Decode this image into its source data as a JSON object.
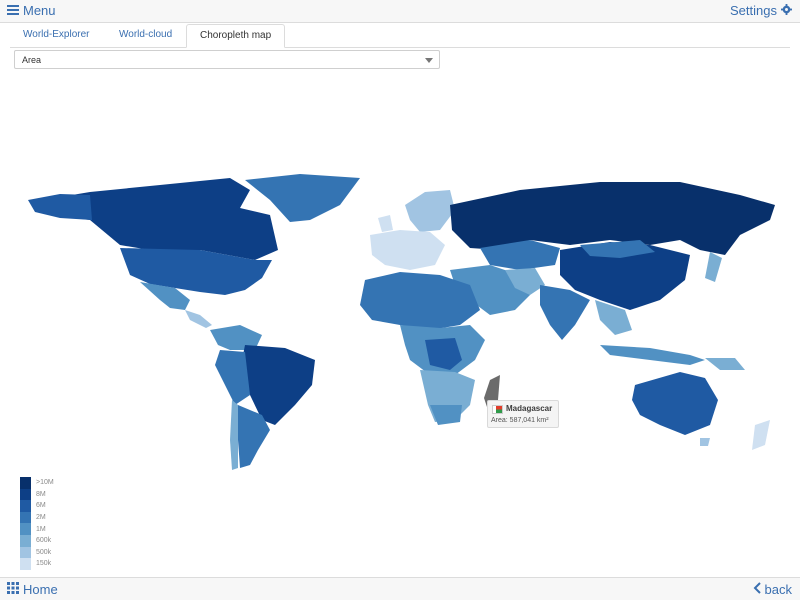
{
  "topbar": {
    "menu_label": "Menu",
    "settings_label": "Settings"
  },
  "tabs": [
    {
      "label": "World-Explorer",
      "active": false
    },
    {
      "label": "World-cloud",
      "active": false
    },
    {
      "label": "Choropleth map",
      "active": true
    }
  ],
  "select": {
    "value": "Area"
  },
  "tooltip": {
    "country": "Madagascar",
    "area_text": "Area: 587,041 km²"
  },
  "legend": [
    {
      "label": ">10M",
      "color": "#08306b"
    },
    {
      "label": "8M",
      "color": "#0d3f86"
    },
    {
      "label": "6M",
      "color": "#1f5aa3"
    },
    {
      "label": "2M",
      "color": "#3474b3"
    },
    {
      "label": "1M",
      "color": "#5191c3"
    },
    {
      "label": "600k",
      "color": "#7aaed3"
    },
    {
      "label": "500k",
      "color": "#a1c4e2"
    },
    {
      "label": "150k",
      "color": "#cfe0f1"
    }
  ],
  "bottombar": {
    "home_label": "Home",
    "back_label": "back"
  },
  "colors": {
    "accent": "#3a6fb0",
    "highlight": "#6b6b6b"
  }
}
